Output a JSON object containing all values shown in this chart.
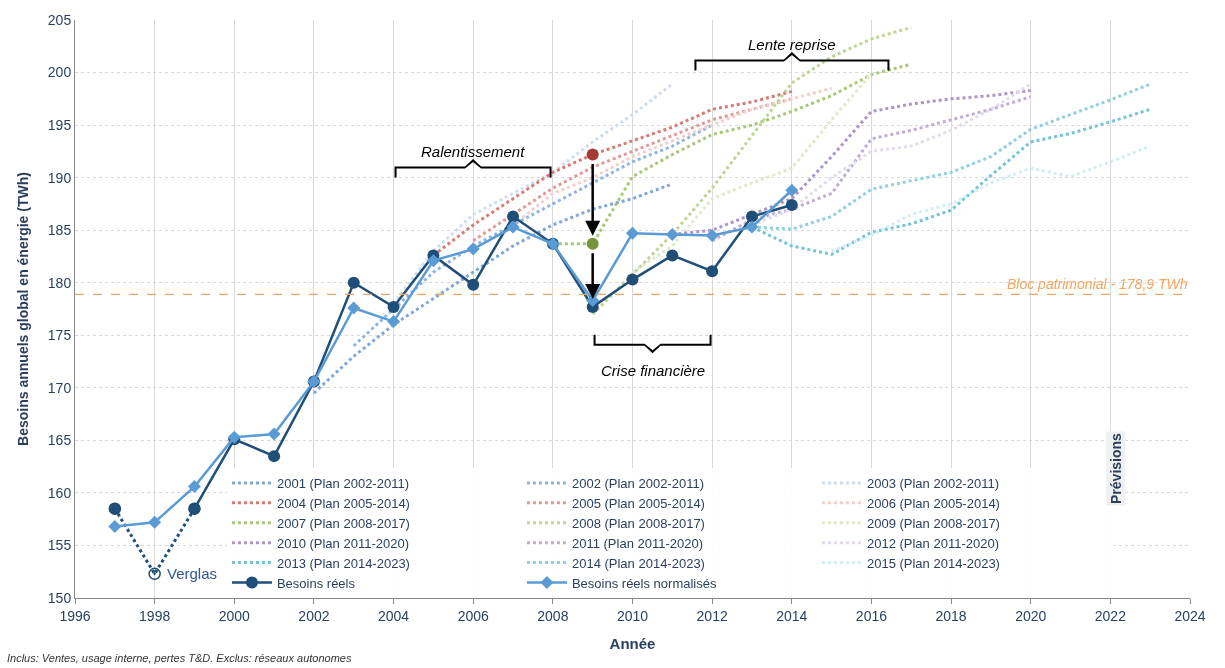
{
  "chart_data": {
    "type": "line",
    "xlabel": "Année",
    "ylabel": "Besoins annuels global en énergie (TWh)",
    "legend_title": "Prévisions",
    "xlim": [
      1996,
      2024
    ],
    "xticks": [
      1996,
      1998,
      2000,
      2002,
      2004,
      2006,
      2008,
      2010,
      2012,
      2014,
      2016,
      2018,
      2020,
      2022,
      2024
    ],
    "ylim": [
      150,
      205
    ],
    "yticks": [
      150,
      155,
      160,
      165,
      170,
      175,
      180,
      185,
      190,
      195,
      200,
      205
    ],
    "grid": true,
    "legend": "bottom right",
    "line_style": "dotted",
    "marker": "none",
    "ref_lines": [
      {
        "axis": "y",
        "value": 178.9,
        "label": "Bloc patrimonial - 178,9 TWh",
        "color": "#f4a460",
        "line_style": "dashed"
      }
    ],
    "annotations": [
      "Ralentissement",
      "Crise financière",
      "Lente reprise",
      {
        "text": "Verglas",
        "x": 1998,
        "y": 152.3
      },
      "Inclus: Ventes, usage interne, pertes T&D. Exclus: réseaux autonomes"
    ],
    "series": [
      {
        "name": "2001 (Plan 2002-2011)",
        "color": "#7fa7da",
        "x": [
          2002,
          2003,
          2004,
          2005,
          2006,
          2007,
          2008,
          2009,
          2010,
          2011
        ],
        "values": [
          169.5,
          173,
          176,
          178.5,
          181,
          183.5,
          185.5,
          187,
          188,
          189.4
        ]
      },
      {
        "name": "2002 (Plan 2002-2011)",
        "color": "#8fb4e3",
        "x": [
          2003,
          2004,
          2005,
          2006,
          2007,
          2008,
          2009,
          2010,
          2011,
          2012
        ],
        "values": [
          174,
          177.5,
          181,
          183.5,
          185.5,
          187.5,
          189.5,
          191.5,
          193,
          195
        ]
      },
      {
        "name": "2003 (Plan 2002-2011)",
        "color": "#cfddf1",
        "x": [
          2004,
          2005,
          2006,
          2007,
          2008,
          2009,
          2010,
          2011
        ],
        "values": [
          178,
          183,
          186.5,
          188.5,
          190.5,
          193.4,
          196,
          198.9
        ]
      },
      {
        "name": "2004 (Plan 2005-2014)",
        "color": "#d97a72",
        "x": [
          2005,
          2006,
          2007,
          2008,
          2009,
          2010,
          2011,
          2012,
          2013,
          2014
        ],
        "values": [
          182.6,
          185.5,
          188,
          190.5,
          192.2,
          193.5,
          194.8,
          196.5,
          197.2,
          198.2
        ]
      },
      {
        "name": "2005 (Plan 2005-2014)",
        "color": "#e29a94",
        "x": [
          2006,
          2007,
          2008,
          2009,
          2010,
          2011,
          2012,
          2013,
          2014
        ],
        "values": [
          184,
          186.5,
          189,
          191,
          192.5,
          194,
          195.5,
          196.5,
          197.5
        ]
      },
      {
        "name": "2006 (Plan 2005-2014)",
        "color": "#f2cfcc",
        "x": [
          2007,
          2008,
          2009,
          2010,
          2011,
          2012,
          2013,
          2014,
          2015
        ],
        "values": [
          185.5,
          188.5,
          190,
          192,
          193.5,
          195,
          196.5,
          197.5,
          198.5
        ]
      },
      {
        "name": "2007 (Plan 2008-2017)",
        "color": "#a9c774",
        "x": [
          2008,
          2009,
          2010,
          2011,
          2012,
          2013,
          2014,
          2015,
          2016,
          2017
        ],
        "values": [
          183.7,
          183.7,
          190.1,
          192.2,
          194.1,
          195,
          196.3,
          197.8,
          199.8,
          200.8
        ]
      },
      {
        "name": "2008 (Plan 2008-2017)",
        "color": "#bdd695",
        "x": [
          2009,
          2010,
          2011,
          2012,
          2013,
          2014,
          2015,
          2016,
          2017
        ],
        "values": [
          177,
          180.8,
          184.6,
          189,
          194,
          199,
          201.5,
          203.2,
          204.3
        ]
      },
      {
        "name": "2009 (Plan 2008-2017)",
        "color": "#dfeacb",
        "x": [
          2010,
          2011,
          2012,
          2013,
          2014,
          2015,
          2016
        ],
        "values": [
          181,
          183.5,
          188,
          189.5,
          190.9,
          195.5,
          199.9
        ]
      },
      {
        "name": "2010 (Plan 2011-2020)",
        "color": "#ad95c9",
        "x": [
          2011,
          2012,
          2013,
          2014,
          2015,
          2016,
          2017,
          2018,
          2019,
          2020
        ],
        "values": [
          184.6,
          185,
          186.5,
          188,
          192,
          196.3,
          197,
          197.5,
          197.8,
          198.3
        ]
      },
      {
        "name": "2011 (Plan 2011-2020)",
        "color": "#c0acd6",
        "x": [
          2012,
          2013,
          2014,
          2015,
          2016,
          2017,
          2018,
          2019,
          2020
        ],
        "values": [
          184,
          186,
          187,
          188.5,
          193.7,
          194.5,
          195.5,
          196.5,
          197.7
        ]
      },
      {
        "name": "2012 (Plan 2011-2020)",
        "color": "#e3daee",
        "x": [
          2013,
          2014,
          2015,
          2016,
          2017,
          2018,
          2019,
          2020
        ],
        "values": [
          185.5,
          187,
          190,
          192.5,
          193,
          194.5,
          196.5,
          198.9
        ]
      },
      {
        "name": "2013 (Plan 2014-2023)",
        "color": "#72c4d6",
        "x": [
          2013,
          2014,
          2015,
          2016,
          2017,
          2018,
          2019,
          2020,
          2021,
          2022,
          2023
        ],
        "values": [
          185.3,
          183.5,
          182.7,
          184.8,
          185.6,
          186.9,
          190.2,
          193.4,
          194.2,
          195.3,
          196.5
        ]
      },
      {
        "name": "2014 (Plan 2014-2023)",
        "color": "#8fd0df",
        "x": [
          2013,
          2014,
          2015,
          2016,
          2017,
          2018,
          2019,
          2020,
          2021,
          2022,
          2023
        ],
        "values": [
          185.3,
          185.1,
          186.3,
          188.9,
          189.7,
          190.5,
          192,
          194.6,
          196,
          197.4,
          198.9
        ]
      },
      {
        "name": "2015 (Plan 2014-2023)",
        "color": "#d3edf3",
        "x": [
          2015,
          2016,
          2017,
          2018,
          2019,
          2020,
          2021,
          2022,
          2023
        ],
        "values": [
          183,
          184.5,
          186.5,
          187.5,
          189.5,
          190.9,
          190.1,
          191.5,
          193
        ]
      },
      {
        "color": "#1f4e79",
        "marker": "circle",
        "x": [
          1997,
          1998,
          1999
        ],
        "values": [
          158.5,
          152.3,
          158.5
        ]
      },
      {
        "name": "Besoins réels",
        "color": "#1f4e79",
        "line_style": "solid",
        "marker": "circle",
        "x": [
          1997,
          1998,
          1999,
          2000,
          2001,
          2002,
          2003,
          2004,
          2005,
          2006,
          2007,
          2008,
          2009,
          2010,
          2011,
          2012,
          2013,
          2014
        ],
        "values": [
          158.5,
          null,
          158.5,
          165.1,
          163.5,
          170.6,
          180.0,
          177.7,
          182.6,
          179.8,
          186.3,
          183.7,
          177.7,
          180.3,
          182.6,
          181.1,
          186.3,
          187.4
        ]
      },
      {
        "name": "Besoins réels normalisés",
        "color": "#5b9bd5",
        "line_style": "solid",
        "marker": "diamond",
        "x": [
          1997,
          1998,
          1999,
          2000,
          2001,
          2002,
          2003,
          2004,
          2005,
          2006,
          2007,
          2008,
          2009,
          2010,
          2011,
          2012,
          2013,
          2014
        ],
        "values": [
          156.8,
          157.2,
          160.6,
          165.3,
          165.6,
          170.6,
          177.6,
          176.3,
          182.1,
          183.2,
          185.3,
          183.7,
          178.3,
          184.7,
          184.6,
          184.5,
          185.3,
          188.8
        ]
      },
      {
        "type": "scatter",
        "marker": "circle",
        "color": "#a33a35",
        "x": [
          2009
        ],
        "values": [
          192.2
        ]
      },
      {
        "type": "scatter",
        "marker": "circle",
        "color": "#77933c",
        "x": [
          2009
        ],
        "values": [
          183.7
        ]
      }
    ]
  }
}
